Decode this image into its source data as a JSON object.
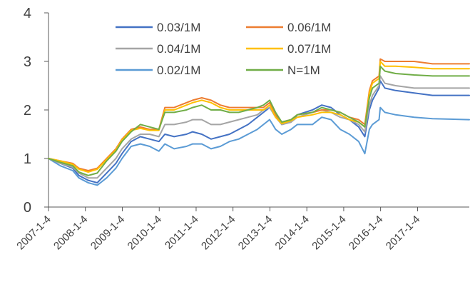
{
  "chart_data": {
    "type": "line",
    "title": "",
    "xlabel": "",
    "ylabel": "",
    "ylim": [
      0,
      4
    ],
    "yticks": [
      "0",
      "1",
      "2",
      "3",
      "4"
    ],
    "xlim": [
      "2007-01-04",
      "2018-05-31"
    ],
    "xtick_labels": [
      "2007-1-4",
      "2008-1-4",
      "2009-1-4",
      "2010-1-4",
      "2011-1-4",
      "2012-1-4",
      "2013-1-4",
      "2014-1-4",
      "2015-1-4",
      "2016-1-4",
      "2017-1-4"
    ],
    "legend_position": "top-center",
    "grid": false,
    "series": [
      {
        "name": "0.03/1M",
        "color": "#4472C4",
        "points": [
          [
            "2007-01-04",
            1.0
          ],
          [
            "2007-05-01",
            0.9
          ],
          [
            "2007-09-01",
            0.8
          ],
          [
            "2007-11-01",
            0.65
          ],
          [
            "2008-02-01",
            0.55
          ],
          [
            "2008-05-01",
            0.5
          ],
          [
            "2008-08-01",
            0.7
          ],
          [
            "2008-11-01",
            0.9
          ],
          [
            "2009-01-01",
            1.1
          ],
          [
            "2009-04-01",
            1.35
          ],
          [
            "2009-07-01",
            1.45
          ],
          [
            "2009-10-01",
            1.4
          ],
          [
            "2010-01-01",
            1.35
          ],
          [
            "2010-03-01",
            1.5
          ],
          [
            "2010-06-01",
            1.45
          ],
          [
            "2010-10-01",
            1.5
          ],
          [
            "2010-12-01",
            1.55
          ],
          [
            "2011-03-01",
            1.5
          ],
          [
            "2011-06-01",
            1.4
          ],
          [
            "2011-09-01",
            1.45
          ],
          [
            "2011-12-01",
            1.5
          ],
          [
            "2012-03-01",
            1.6
          ],
          [
            "2012-06-01",
            1.7
          ],
          [
            "2012-09-01",
            1.85
          ],
          [
            "2012-11-01",
            1.95
          ],
          [
            "2013-01-01",
            2.05
          ],
          [
            "2013-03-01",
            1.9
          ],
          [
            "2013-05-01",
            1.7
          ],
          [
            "2013-08-01",
            1.75
          ],
          [
            "2013-10-01",
            1.9
          ],
          [
            "2014-03-01",
            2.0
          ],
          [
            "2014-06-01",
            2.1
          ],
          [
            "2014-09-01",
            2.05
          ],
          [
            "2014-12-01",
            1.9
          ],
          [
            "2015-03-01",
            1.8
          ],
          [
            "2015-06-01",
            1.65
          ],
          [
            "2015-08-01",
            1.45
          ],
          [
            "2015-09-15",
            2.0
          ],
          [
            "2015-10-15",
            2.2
          ],
          [
            "2015-12-20",
            2.45
          ],
          [
            "2016-01-01",
            2.6
          ],
          [
            "2016-02-15",
            2.45
          ],
          [
            "2016-06-01",
            2.4
          ],
          [
            "2016-12-01",
            2.35
          ],
          [
            "2017-06-01",
            2.3
          ],
          [
            "2018-05-31",
            2.3
          ]
        ]
      },
      {
        "name": "0.06/1M",
        "color": "#ED7D31",
        "points": [
          [
            "2007-01-04",
            1.0
          ],
          [
            "2007-05-01",
            0.95
          ],
          [
            "2007-09-01",
            0.9
          ],
          [
            "2007-11-01",
            0.8
          ],
          [
            "2008-02-01",
            0.75
          ],
          [
            "2008-05-01",
            0.8
          ],
          [
            "2008-08-01",
            1.0
          ],
          [
            "2008-11-01",
            1.2
          ],
          [
            "2009-01-01",
            1.4
          ],
          [
            "2009-04-01",
            1.6
          ],
          [
            "2009-07-01",
            1.65
          ],
          [
            "2009-10-01",
            1.6
          ],
          [
            "2010-01-01",
            1.6
          ],
          [
            "2010-03-01",
            2.05
          ],
          [
            "2010-06-01",
            2.05
          ],
          [
            "2010-10-01",
            2.15
          ],
          [
            "2010-12-01",
            2.2
          ],
          [
            "2011-03-01",
            2.25
          ],
          [
            "2011-06-01",
            2.2
          ],
          [
            "2011-09-01",
            2.1
          ],
          [
            "2011-12-01",
            2.05
          ],
          [
            "2012-03-01",
            2.05
          ],
          [
            "2012-06-01",
            2.05
          ],
          [
            "2012-09-01",
            2.05
          ],
          [
            "2012-11-01",
            2.05
          ],
          [
            "2013-01-01",
            2.15
          ],
          [
            "2013-03-01",
            1.9
          ],
          [
            "2013-05-01",
            1.75
          ],
          [
            "2013-08-01",
            1.8
          ],
          [
            "2013-10-01",
            1.9
          ],
          [
            "2014-03-01",
            1.95
          ],
          [
            "2014-06-01",
            2.0
          ],
          [
            "2014-09-01",
            2.0
          ],
          [
            "2014-12-01",
            1.95
          ],
          [
            "2015-03-01",
            1.85
          ],
          [
            "2015-06-01",
            1.8
          ],
          [
            "2015-08-01",
            1.7
          ],
          [
            "2015-09-15",
            2.4
          ],
          [
            "2015-10-15",
            2.6
          ],
          [
            "2015-12-20",
            2.7
          ],
          [
            "2016-01-01",
            3.05
          ],
          [
            "2016-02-15",
            3.0
          ],
          [
            "2016-06-01",
            3.0
          ],
          [
            "2016-12-01",
            3.0
          ],
          [
            "2017-06-01",
            2.95
          ],
          [
            "2018-05-31",
            2.95
          ]
        ]
      },
      {
        "name": "0.04/1M",
        "color": "#A5A5A5",
        "points": [
          [
            "2007-01-04",
            1.0
          ],
          [
            "2007-05-01",
            0.9
          ],
          [
            "2007-09-01",
            0.82
          ],
          [
            "2007-11-01",
            0.7
          ],
          [
            "2008-02-01",
            0.6
          ],
          [
            "2008-05-01",
            0.6
          ],
          [
            "2008-08-01",
            0.8
          ],
          [
            "2008-11-01",
            1.0
          ],
          [
            "2009-01-01",
            1.2
          ],
          [
            "2009-04-01",
            1.4
          ],
          [
            "2009-07-01",
            1.5
          ],
          [
            "2009-10-01",
            1.5
          ],
          [
            "2010-01-01",
            1.45
          ],
          [
            "2010-03-01",
            1.7
          ],
          [
            "2010-06-01",
            1.7
          ],
          [
            "2010-10-01",
            1.75
          ],
          [
            "2010-12-01",
            1.8
          ],
          [
            "2011-03-01",
            1.8
          ],
          [
            "2011-06-01",
            1.7
          ],
          [
            "2011-09-01",
            1.7
          ],
          [
            "2011-12-01",
            1.75
          ],
          [
            "2012-03-01",
            1.8
          ],
          [
            "2012-06-01",
            1.85
          ],
          [
            "2012-09-01",
            1.9
          ],
          [
            "2012-11-01",
            2.0
          ],
          [
            "2013-01-01",
            2.05
          ],
          [
            "2013-03-01",
            1.85
          ],
          [
            "2013-05-01",
            1.7
          ],
          [
            "2013-08-01",
            1.75
          ],
          [
            "2013-10-01",
            1.85
          ],
          [
            "2014-03-01",
            1.95
          ],
          [
            "2014-06-01",
            2.0
          ],
          [
            "2014-09-01",
            1.95
          ],
          [
            "2014-12-01",
            1.85
          ],
          [
            "2015-03-01",
            1.8
          ],
          [
            "2015-06-01",
            1.7
          ],
          [
            "2015-08-01",
            1.55
          ],
          [
            "2015-09-15",
            2.1
          ],
          [
            "2015-10-15",
            2.3
          ],
          [
            "2015-12-20",
            2.5
          ],
          [
            "2016-01-01",
            2.7
          ],
          [
            "2016-02-15",
            2.55
          ],
          [
            "2016-06-01",
            2.5
          ],
          [
            "2016-12-01",
            2.45
          ],
          [
            "2017-06-01",
            2.45
          ],
          [
            "2018-05-31",
            2.45
          ]
        ]
      },
      {
        "name": "0.07/1M",
        "color": "#FFC000",
        "points": [
          [
            "2007-01-04",
            1.0
          ],
          [
            "2007-05-01",
            0.95
          ],
          [
            "2007-09-01",
            0.88
          ],
          [
            "2007-11-01",
            0.78
          ],
          [
            "2008-02-01",
            0.72
          ],
          [
            "2008-05-01",
            0.78
          ],
          [
            "2008-08-01",
            0.98
          ],
          [
            "2008-11-01",
            1.18
          ],
          [
            "2009-01-01",
            1.38
          ],
          [
            "2009-04-01",
            1.58
          ],
          [
            "2009-07-01",
            1.62
          ],
          [
            "2009-10-01",
            1.58
          ],
          [
            "2010-01-01",
            1.58
          ],
          [
            "2010-03-01",
            2.0
          ],
          [
            "2010-06-01",
            2.0
          ],
          [
            "2010-10-01",
            2.1
          ],
          [
            "2010-12-01",
            2.15
          ],
          [
            "2011-03-01",
            2.2
          ],
          [
            "2011-06-01",
            2.15
          ],
          [
            "2011-09-01",
            2.05
          ],
          [
            "2011-12-01",
            2.0
          ],
          [
            "2012-03-01",
            2.0
          ],
          [
            "2012-06-01",
            2.0
          ],
          [
            "2012-09-01",
            2.0
          ],
          [
            "2012-11-01",
            2.0
          ],
          [
            "2013-01-01",
            2.1
          ],
          [
            "2013-03-01",
            1.85
          ],
          [
            "2013-05-01",
            1.72
          ],
          [
            "2013-08-01",
            1.78
          ],
          [
            "2013-10-01",
            1.85
          ],
          [
            "2014-03-01",
            1.9
          ],
          [
            "2014-06-01",
            1.95
          ],
          [
            "2014-09-01",
            1.95
          ],
          [
            "2014-12-01",
            1.9
          ],
          [
            "2015-03-01",
            1.8
          ],
          [
            "2015-06-01",
            1.75
          ],
          [
            "2015-08-01",
            1.65
          ],
          [
            "2015-09-15",
            2.35
          ],
          [
            "2015-10-15",
            2.55
          ],
          [
            "2015-12-20",
            2.65
          ],
          [
            "2016-01-01",
            3.0
          ],
          [
            "2016-02-15",
            2.9
          ],
          [
            "2016-06-01",
            2.9
          ],
          [
            "2016-12-01",
            2.88
          ],
          [
            "2017-06-01",
            2.85
          ],
          [
            "2018-05-31",
            2.85
          ]
        ]
      },
      {
        "name": "0.02/1M",
        "color": "#5B9BD5",
        "points": [
          [
            "2007-01-04",
            1.0
          ],
          [
            "2007-05-01",
            0.85
          ],
          [
            "2007-09-01",
            0.75
          ],
          [
            "2007-11-01",
            0.6
          ],
          [
            "2008-02-01",
            0.5
          ],
          [
            "2008-05-01",
            0.45
          ],
          [
            "2008-08-01",
            0.6
          ],
          [
            "2008-11-01",
            0.8
          ],
          [
            "2009-01-01",
            1.0
          ],
          [
            "2009-04-01",
            1.25
          ],
          [
            "2009-07-01",
            1.3
          ],
          [
            "2009-10-01",
            1.25
          ],
          [
            "2010-01-01",
            1.15
          ],
          [
            "2010-03-01",
            1.3
          ],
          [
            "2010-06-01",
            1.2
          ],
          [
            "2010-10-01",
            1.25
          ],
          [
            "2010-12-01",
            1.3
          ],
          [
            "2011-03-01",
            1.3
          ],
          [
            "2011-06-01",
            1.2
          ],
          [
            "2011-09-01",
            1.25
          ],
          [
            "2011-12-01",
            1.35
          ],
          [
            "2012-03-01",
            1.4
          ],
          [
            "2012-06-01",
            1.5
          ],
          [
            "2012-09-01",
            1.6
          ],
          [
            "2012-11-01",
            1.7
          ],
          [
            "2013-01-01",
            1.8
          ],
          [
            "2013-03-01",
            1.6
          ],
          [
            "2013-05-01",
            1.5
          ],
          [
            "2013-08-01",
            1.6
          ],
          [
            "2013-10-01",
            1.7
          ],
          [
            "2014-03-01",
            1.7
          ],
          [
            "2014-06-01",
            1.85
          ],
          [
            "2014-09-01",
            1.8
          ],
          [
            "2014-12-01",
            1.6
          ],
          [
            "2015-03-01",
            1.5
          ],
          [
            "2015-06-01",
            1.35
          ],
          [
            "2015-08-01",
            1.1
          ],
          [
            "2015-09-15",
            1.6
          ],
          [
            "2015-10-15",
            1.7
          ],
          [
            "2015-12-20",
            1.8
          ],
          [
            "2016-01-01",
            2.05
          ],
          [
            "2016-02-15",
            1.95
          ],
          [
            "2016-06-01",
            1.9
          ],
          [
            "2016-12-01",
            1.85
          ],
          [
            "2017-06-01",
            1.82
          ],
          [
            "2018-05-31",
            1.8
          ]
        ]
      },
      {
        "name": "N=1M",
        "color": "#70AD47",
        "points": [
          [
            "2007-01-04",
            1.0
          ],
          [
            "2007-05-01",
            0.92
          ],
          [
            "2007-09-01",
            0.85
          ],
          [
            "2007-11-01",
            0.72
          ],
          [
            "2008-02-01",
            0.65
          ],
          [
            "2008-05-01",
            0.7
          ],
          [
            "2008-08-01",
            0.95
          ],
          [
            "2008-11-01",
            1.15
          ],
          [
            "2009-01-01",
            1.35
          ],
          [
            "2009-04-01",
            1.55
          ],
          [
            "2009-07-01",
            1.7
          ],
          [
            "2009-10-01",
            1.65
          ],
          [
            "2010-01-01",
            1.6
          ],
          [
            "2010-03-01",
            1.95
          ],
          [
            "2010-06-01",
            1.95
          ],
          [
            "2010-10-01",
            2.0
          ],
          [
            "2010-12-01",
            2.05
          ],
          [
            "2011-03-01",
            2.1
          ],
          [
            "2011-06-01",
            2.0
          ],
          [
            "2011-09-01",
            2.0
          ],
          [
            "2011-12-01",
            1.95
          ],
          [
            "2012-03-01",
            1.95
          ],
          [
            "2012-06-01",
            2.0
          ],
          [
            "2012-09-01",
            2.05
          ],
          [
            "2012-11-01",
            2.1
          ],
          [
            "2013-01-01",
            2.2
          ],
          [
            "2013-03-01",
            1.95
          ],
          [
            "2013-05-01",
            1.75
          ],
          [
            "2013-08-01",
            1.8
          ],
          [
            "2013-10-01",
            1.9
          ],
          [
            "2014-03-01",
            1.95
          ],
          [
            "2014-06-01",
            2.05
          ],
          [
            "2014-09-01",
            2.0
          ],
          [
            "2014-12-01",
            1.95
          ],
          [
            "2015-03-01",
            1.85
          ],
          [
            "2015-06-01",
            1.75
          ],
          [
            "2015-08-01",
            1.65
          ],
          [
            "2015-09-15",
            2.25
          ],
          [
            "2015-10-15",
            2.45
          ],
          [
            "2015-12-20",
            2.55
          ],
          [
            "2016-01-01",
            2.9
          ],
          [
            "2016-02-15",
            2.8
          ],
          [
            "2016-06-01",
            2.75
          ],
          [
            "2016-12-01",
            2.72
          ],
          [
            "2017-06-01",
            2.7
          ],
          [
            "2018-05-31",
            2.7
          ]
        ]
      }
    ]
  }
}
